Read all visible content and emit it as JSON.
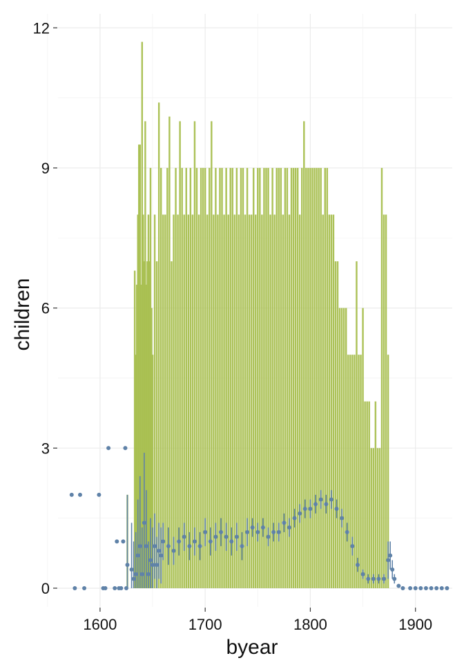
{
  "chart_data": {
    "type": "scatter",
    "title": "",
    "xlabel": "byear",
    "ylabel": "children",
    "xlim": [
      1560,
      1935
    ],
    "ylim": [
      -0.4,
      12.3
    ],
    "x_ticks": [
      1600,
      1700,
      1800,
      1900
    ],
    "y_ticks": [
      0,
      3,
      6,
      9,
      12
    ],
    "grid": true,
    "legend": "none",
    "colors": {
      "range_bars": "#a8bf4f",
      "mean_points": "#5f82a8",
      "grid": "#ebebeb"
    },
    "series": [
      {
        "type": "range",
        "description": "per-birth-year max children (vertical bars from 0 to max)",
        "x": [
          1626,
          1633,
          1634,
          1635,
          1636,
          1637,
          1638,
          1639,
          1640,
          1641,
          1642,
          1643,
          1644,
          1645,
          1646,
          1647,
          1648,
          1649,
          1650,
          1652,
          1654,
          1656,
          1658,
          1660,
          1662,
          1664,
          1666,
          1668,
          1670,
          1672,
          1674,
          1676,
          1678,
          1680,
          1682,
          1684,
          1686,
          1688,
          1690,
          1692,
          1694,
          1696,
          1698,
          1700,
          1702,
          1704,
          1706,
          1708,
          1710,
          1712,
          1714,
          1716,
          1718,
          1720,
          1722,
          1724,
          1726,
          1728,
          1730,
          1732,
          1734,
          1736,
          1738,
          1740,
          1742,
          1744,
          1746,
          1748,
          1750,
          1752,
          1754,
          1756,
          1758,
          1760,
          1762,
          1764,
          1766,
          1768,
          1770,
          1772,
          1774,
          1776,
          1778,
          1780,
          1782,
          1784,
          1786,
          1788,
          1790,
          1792,
          1794,
          1796,
          1798,
          1800,
          1802,
          1804,
          1806,
          1808,
          1810,
          1812,
          1814,
          1816,
          1818,
          1820,
          1822,
          1824,
          1826,
          1828,
          1830,
          1832,
          1834,
          1836,
          1838,
          1840,
          1842,
          1844,
          1846,
          1848,
          1850,
          1852,
          1854,
          1856,
          1858,
          1860,
          1862,
          1864,
          1866,
          1868,
          1870,
          1872,
          1874,
          1876,
          1878,
          1880,
          1882,
          1884
        ],
        "ymax": [
          2,
          6.8,
          5,
          6.5,
          8,
          9.5,
          9.5,
          6.5,
          11.7,
          8,
          7,
          10,
          6.5,
          7,
          8,
          7,
          9,
          6,
          5,
          8,
          7,
          10.4,
          9,
          8,
          8,
          9,
          10.1,
          7,
          8,
          9,
          8,
          10,
          9,
          8,
          9,
          8,
          9,
          8,
          10,
          9,
          8,
          9,
          9,
          9,
          8,
          9,
          10,
          8,
          9,
          8,
          9,
          9,
          8,
          9,
          8,
          9,
          9,
          8,
          9,
          8,
          9,
          9,
          8,
          9,
          8,
          8,
          9,
          8,
          9,
          9,
          8,
          9,
          9,
          9,
          8,
          9,
          8,
          9,
          9,
          9,
          8,
          9,
          9,
          8,
          9,
          9,
          9,
          9,
          8,
          9,
          10,
          9,
          9,
          9,
          9,
          9,
          9,
          9,
          9,
          8,
          9,
          9,
          8,
          8,
          8,
          7,
          7,
          6,
          6,
          6,
          6,
          5,
          5,
          5,
          5,
          7,
          5,
          5,
          6,
          4,
          4,
          4,
          3,
          3,
          4,
          3,
          3,
          9,
          8,
          8,
          5
        ],
        "ymin": 0
      },
      {
        "type": "scatter",
        "name": "",
        "description": "per-birth-year mean children with error bars",
        "x": [
          1573,
          1576,
          1581,
          1585,
          1599,
          1603,
          1605,
          1608,
          1614,
          1616,
          1618,
          1620,
          1622,
          1624,
          1625,
          1626,
          1630,
          1632,
          1634,
          1636,
          1638,
          1640,
          1642,
          1644,
          1646,
          1648,
          1650,
          1652,
          1654,
          1656,
          1658,
          1660,
          1665,
          1670,
          1675,
          1680,
          1685,
          1690,
          1695,
          1700,
          1705,
          1710,
          1715,
          1720,
          1725,
          1730,
          1735,
          1740,
          1745,
          1750,
          1755,
          1760,
          1765,
          1770,
          1775,
          1780,
          1785,
          1790,
          1795,
          1800,
          1805,
          1810,
          1815,
          1820,
          1825,
          1830,
          1835,
          1840,
          1845,
          1850,
          1855,
          1860,
          1865,
          1870,
          1874,
          1876,
          1878,
          1880,
          1884,
          1888,
          1895,
          1900,
          1905,
          1910,
          1915,
          1920,
          1925,
          1930
        ],
        "y": [
          2,
          0,
          2,
          0,
          2,
          0,
          0,
          3,
          0,
          1,
          0,
          0,
          1,
          3,
          0,
          0.5,
          0.4,
          0.2,
          0.3,
          0.7,
          0.9,
          0.3,
          1.4,
          0.9,
          0.3,
          0.6,
          0.5,
          0.9,
          0.5,
          0.8,
          0.7,
          1.0,
          0.9,
          0.8,
          1.0,
          1.1,
          0.9,
          1.0,
          0.9,
          1.2,
          1.0,
          1.1,
          1.2,
          1.1,
          1.0,
          1.1,
          0.9,
          1.2,
          1.3,
          1.2,
          1.3,
          1.1,
          1.2,
          1.2,
          1.4,
          1.3,
          1.5,
          1.6,
          1.7,
          1.7,
          1.8,
          1.9,
          1.8,
          1.9,
          1.7,
          1.5,
          1.2,
          0.9,
          0.5,
          0.3,
          0.2,
          0.2,
          0.2,
          0.2,
          0.6,
          0.7,
          0.4,
          0.2,
          0.05,
          0,
          0,
          0,
          0,
          0,
          0,
          0,
          0,
          0
        ],
        "err": [
          0,
          0,
          0,
          0,
          0,
          0,
          0,
          0,
          0,
          0,
          0,
          0,
          0,
          0,
          0,
          1.5,
          1.0,
          0.8,
          0.9,
          1.2,
          1.5,
          1.0,
          1.5,
          1.2,
          0.7,
          0.9,
          0.8,
          0.7,
          0.6,
          0.6,
          0.6,
          0.4,
          0.4,
          0.3,
          0.3,
          0.3,
          0.3,
          0.3,
          0.3,
          0.3,
          0.3,
          0.3,
          0.3,
          0.3,
          0.3,
          0.3,
          0.3,
          0.3,
          0.2,
          0.2,
          0.2,
          0.2,
          0.2,
          0.2,
          0.2,
          0.2,
          0.2,
          0.2,
          0.2,
          0.2,
          0.2,
          0.2,
          0.2,
          0.2,
          0.2,
          0.2,
          0.2,
          0.2,
          0.15,
          0.1,
          0.1,
          0.1,
          0.1,
          0.1,
          0.4,
          0.3,
          0.2,
          0.1,
          0,
          0,
          0,
          0,
          0,
          0,
          0,
          0,
          0,
          0
        ]
      }
    ]
  }
}
